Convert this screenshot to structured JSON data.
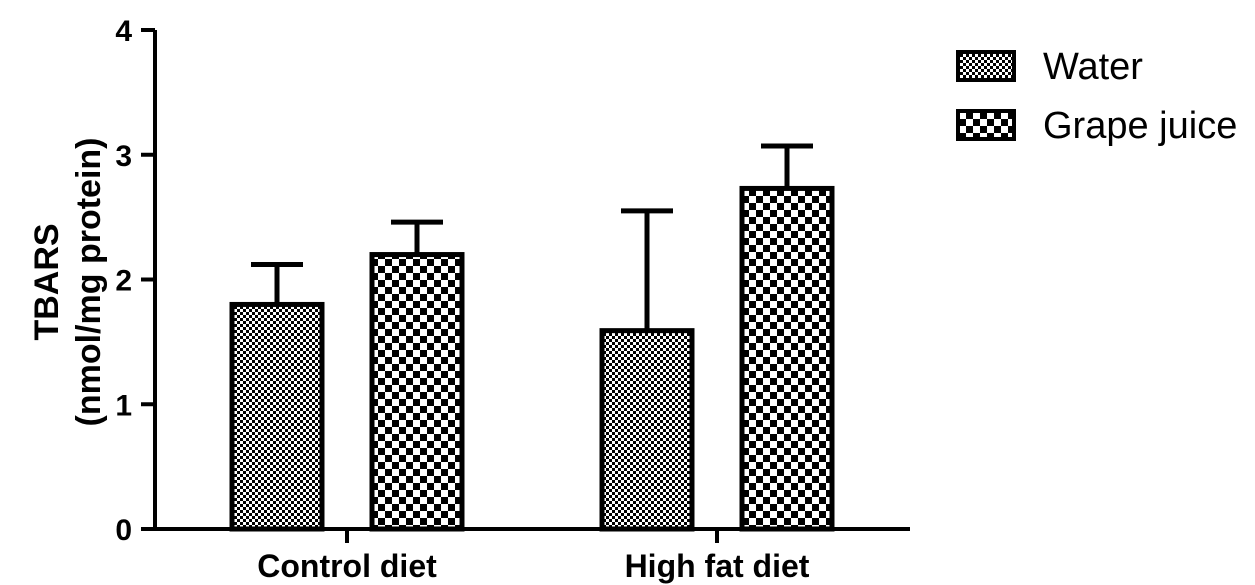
{
  "chart_data": {
    "type": "bar",
    "categories": [
      "Control diet",
      "High fat diet"
    ],
    "series": [
      {
        "name": "Water",
        "values": [
          1.8,
          1.59
        ],
        "errors": [
          0.32,
          0.96
        ],
        "pattern": "fine-check"
      },
      {
        "name": "Grape juice",
        "values": [
          2.2,
          2.73
        ],
        "errors": [
          0.26,
          0.34
        ],
        "pattern": "coarse-check"
      }
    ],
    "ylabel_line1": "TBARS",
    "ylabel_line2": "(nmol/mg protein)",
    "ylim": [
      0,
      4
    ],
    "yticks": [
      "0",
      "1",
      "2",
      "3",
      "4"
    ],
    "legend_position": "top-right",
    "grid": false,
    "colors": {
      "ink": "#000000",
      "fill": "#ffffff"
    }
  }
}
